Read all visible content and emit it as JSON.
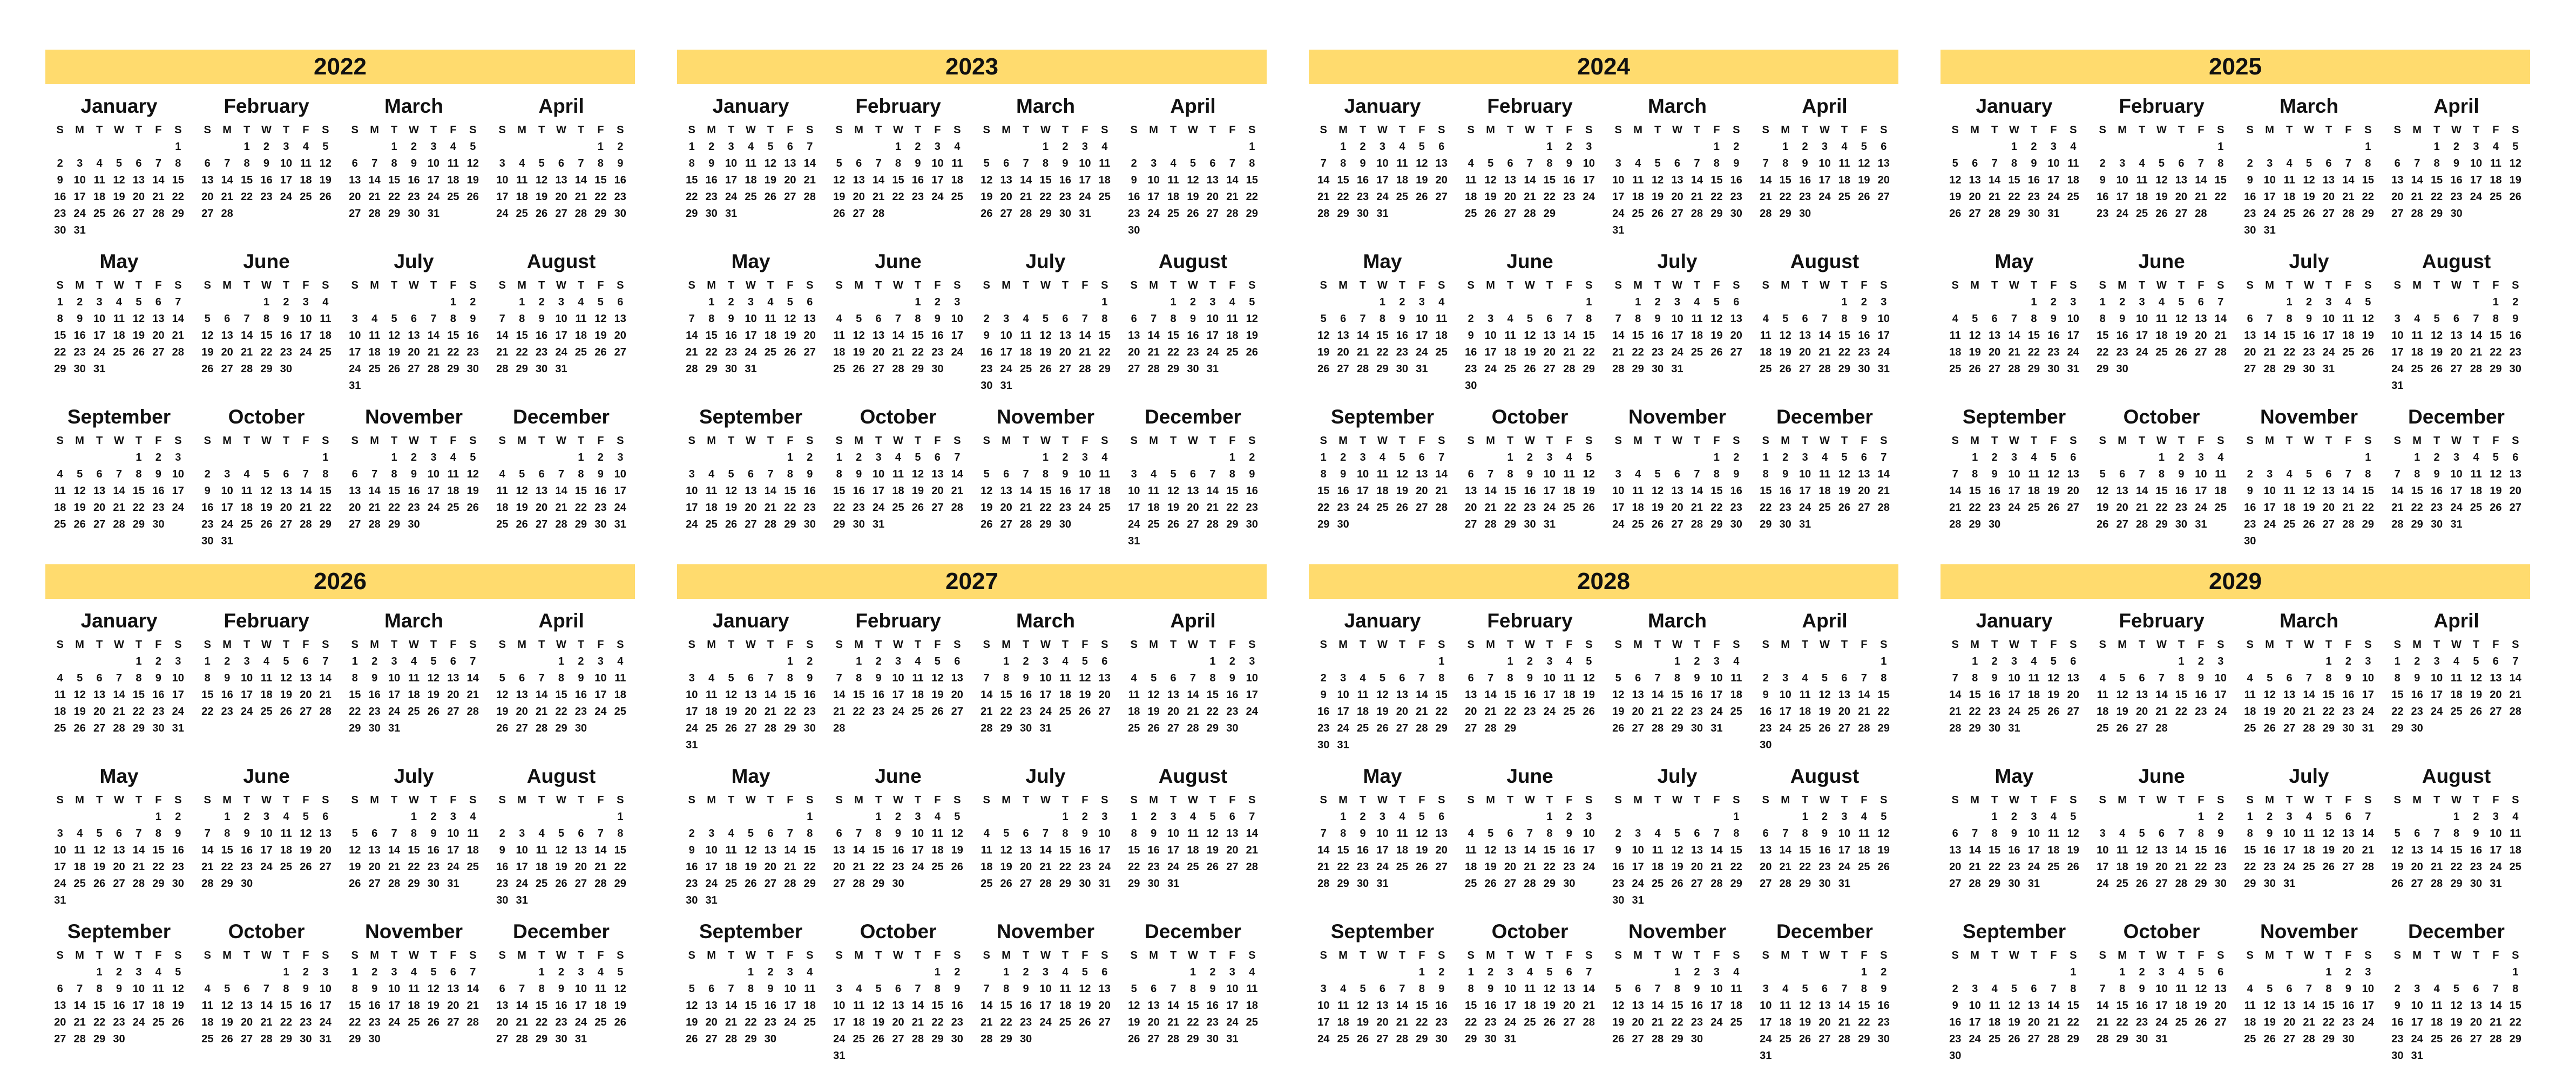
{
  "colors": {
    "year_band": "#ffdb6e",
    "text": "#111111",
    "background": "#ffffff"
  },
  "weekday_labels": [
    "S",
    "M",
    "T",
    "W",
    "T",
    "F",
    "S"
  ],
  "month_names": [
    "January",
    "February",
    "March",
    "April",
    "May",
    "June",
    "July",
    "August",
    "September",
    "October",
    "November",
    "December"
  ],
  "years": [
    {
      "label": "2022",
      "year": 2022
    },
    {
      "label": "2023",
      "year": 2023
    },
    {
      "label": "2024",
      "year": 2024
    },
    {
      "label": "2025",
      "year": 2025
    },
    {
      "label": "2026",
      "year": 2026
    },
    {
      "label": "2027",
      "year": 2027
    },
    {
      "label": "2028",
      "year": 2028
    },
    {
      "label": "2029",
      "year": 2029
    }
  ]
}
